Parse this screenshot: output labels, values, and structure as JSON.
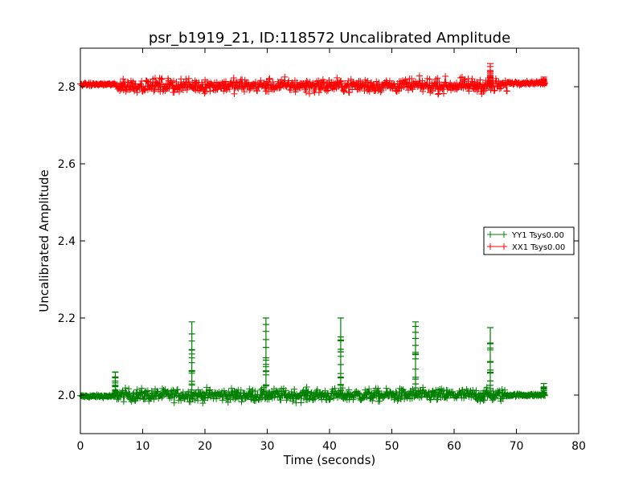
{
  "chart_data": {
    "type": "scatter",
    "title": "psr_b1919_21, ID:118572 Uncalibrated Amplitude",
    "xlabel": "Time (seconds)",
    "ylabel": "Uncalibrated Amplitude",
    "xlim": [
      0,
      80
    ],
    "ylim": [
      1.9,
      2.9
    ],
    "xticks": [
      0,
      10,
      20,
      30,
      40,
      50,
      60,
      70,
      80
    ],
    "yticks": [
      2.0,
      2.2,
      2.4,
      2.6,
      2.8
    ],
    "xtick_labels": [
      "0",
      "10",
      "20",
      "30",
      "40",
      "50",
      "60",
      "70",
      "80"
    ],
    "ytick_labels": [
      "2.0",
      "2.2",
      "2.4",
      "2.6",
      "2.8"
    ],
    "grid": false,
    "legend_position": "right, middle",
    "marker": "+",
    "series": [
      {
        "name": "YY1 Tsys0.00",
        "color": "#008000",
        "segments": [
          {
            "x_start": 0.0,
            "x_end": 5.6,
            "center": 1.997,
            "spread": 0.006
          },
          {
            "x_start": 5.6,
            "x_end": 68.5,
            "center": 2.0,
            "spread": 0.028
          },
          {
            "x_start": 68.5,
            "x_end": 74.6,
            "center": 2.0,
            "spread": 0.006
          }
        ],
        "spikes": [
          {
            "x": 5.6,
            "peak": 2.06
          },
          {
            "x": 17.9,
            "peak": 2.19
          },
          {
            "x": 29.8,
            "peak": 2.2
          },
          {
            "x": 41.8,
            "peak": 2.2
          },
          {
            "x": 53.8,
            "peak": 2.19
          },
          {
            "x": 65.8,
            "peak": 2.175
          },
          {
            "x": 74.4,
            "peak": 2.03
          }
        ]
      },
      {
        "name": "XX1 Tsys0.00",
        "color": "#ff0000",
        "segments": [
          {
            "x_start": 0.0,
            "x_end": 5.6,
            "center": 2.806,
            "spread": 0.006
          },
          {
            "x_start": 5.6,
            "x_end": 68.5,
            "center": 2.803,
            "spread": 0.03
          },
          {
            "x_start": 68.5,
            "x_end": 74.6,
            "center": 2.81,
            "spread": 0.007
          }
        ],
        "spikes": [
          {
            "x": 65.8,
            "peak": 2.86
          },
          {
            "x": 74.4,
            "peak": 2.825
          }
        ]
      }
    ]
  }
}
